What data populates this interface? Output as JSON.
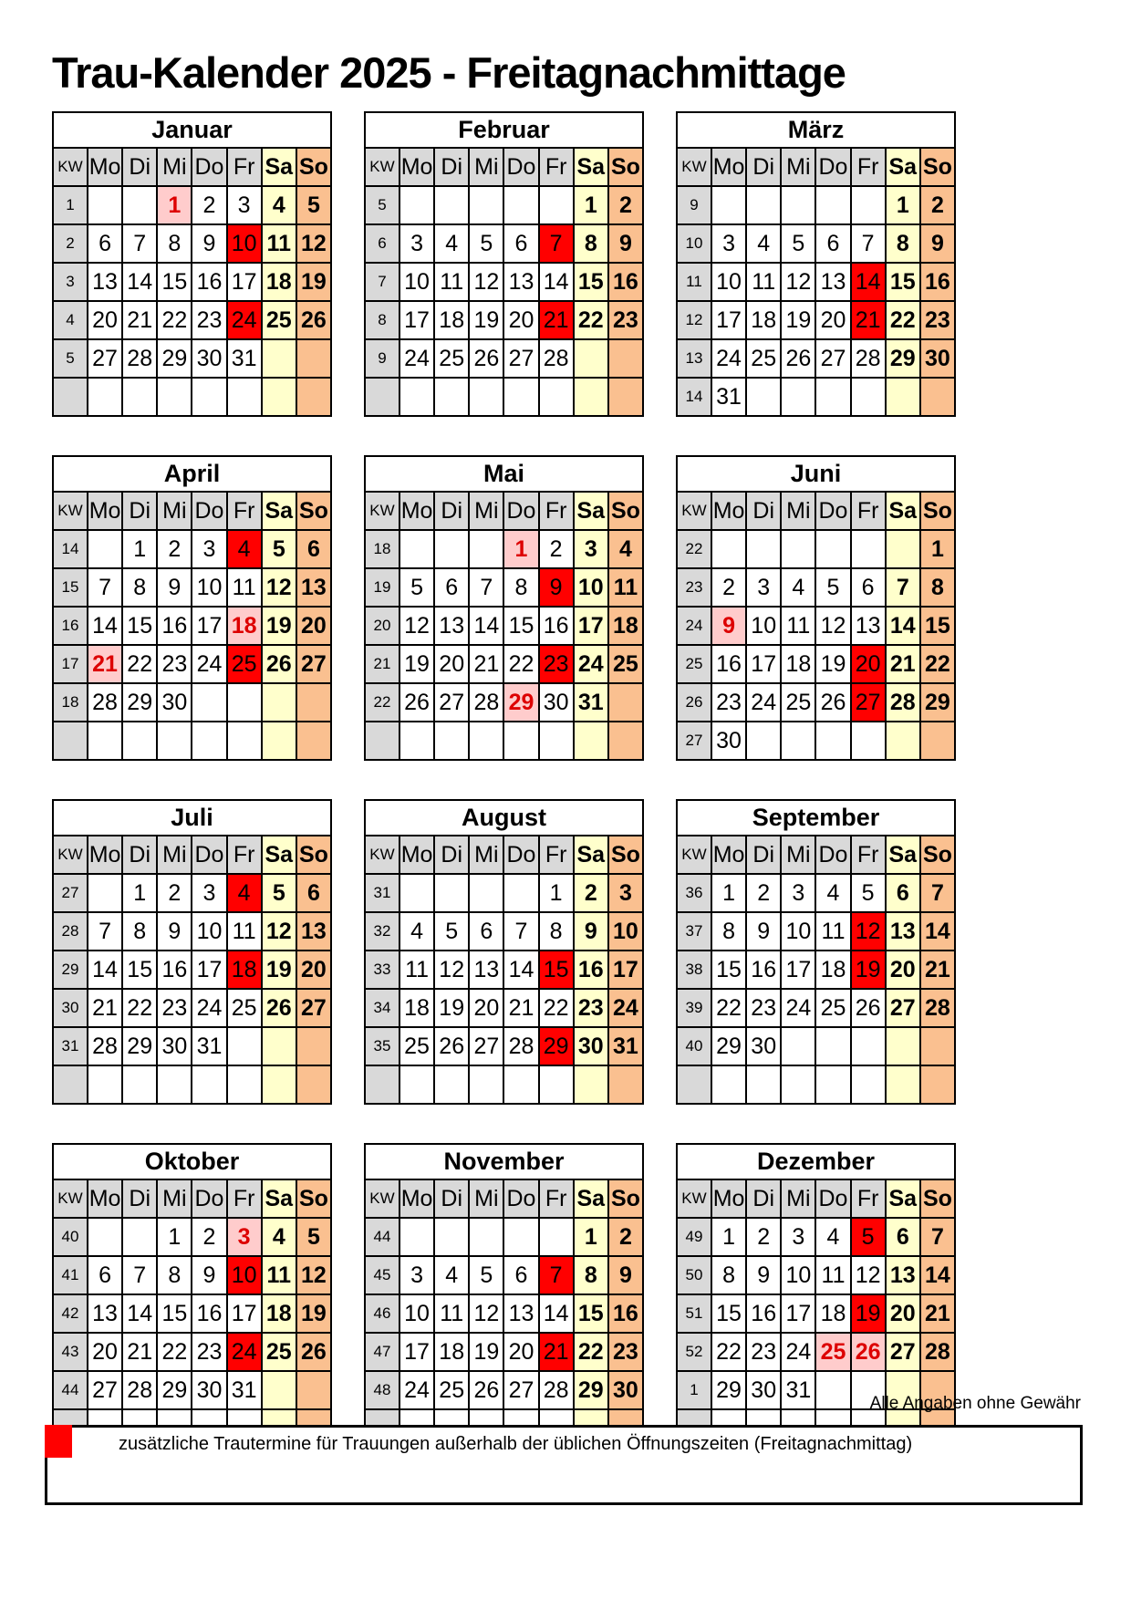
{
  "title": "Trau-Kalender 2025 - Freitagnachmittage",
  "disclaimer": "Alle Angaben ohne Gewähr",
  "legend": {
    "swatch_color": "#FF0000",
    "text": "zusätzliche Trautermine für Trauungen außerhalb der üblichen Öffnungszeiten (Freitagnachmittag)"
  },
  "colors": {
    "header_gray": "#D9D9D9",
    "saturday_yellow": "#FFFFCC",
    "sunday_orange": "#FAC090",
    "marked_friday_red": "#FF0000",
    "holiday_pink_bg": "#FFCCCC",
    "holiday_red_text": "#DD0000"
  },
  "day_headers": [
    "KW",
    "Mo",
    "Di",
    "Mi",
    "Do",
    "Fr",
    "Sa",
    "So"
  ],
  "cell_codes": {
    "R": "marked friday (red background)",
    "H": "public holiday (pink background, red bold)"
  },
  "months": [
    {
      "name": "Januar",
      "weeks": [
        {
          "kw": "1",
          "days": [
            "",
            "",
            "1H",
            "2",
            "3",
            "4",
            "5"
          ]
        },
        {
          "kw": "2",
          "days": [
            "6",
            "7",
            "8",
            "9",
            "10R",
            "11",
            "12"
          ]
        },
        {
          "kw": "3",
          "days": [
            "13",
            "14",
            "15",
            "16",
            "17",
            "18",
            "19"
          ]
        },
        {
          "kw": "4",
          "days": [
            "20",
            "21",
            "22",
            "23",
            "24R",
            "25",
            "26"
          ]
        },
        {
          "kw": "5",
          "days": [
            "27",
            "28",
            "29",
            "30",
            "31",
            "",
            ""
          ]
        },
        {
          "kw": "",
          "days": [
            "",
            "",
            "",
            "",
            "",
            "",
            ""
          ]
        }
      ]
    },
    {
      "name": "Februar",
      "weeks": [
        {
          "kw": "5",
          "days": [
            "",
            "",
            "",
            "",
            "",
            "1",
            "2"
          ]
        },
        {
          "kw": "6",
          "days": [
            "3",
            "4",
            "5",
            "6",
            "7R",
            "8",
            "9"
          ]
        },
        {
          "kw": "7",
          "days": [
            "10",
            "11",
            "12",
            "13",
            "14",
            "15",
            "16"
          ]
        },
        {
          "kw": "8",
          "days": [
            "17",
            "18",
            "19",
            "20",
            "21R",
            "22",
            "23"
          ]
        },
        {
          "kw": "9",
          "days": [
            "24",
            "25",
            "26",
            "27",
            "28",
            "",
            ""
          ]
        },
        {
          "kw": "",
          "days": [
            "",
            "",
            "",
            "",
            "",
            "",
            ""
          ]
        }
      ]
    },
    {
      "name": "März",
      "weeks": [
        {
          "kw": "9",
          "days": [
            "",
            "",
            "",
            "",
            "",
            "1",
            "2"
          ]
        },
        {
          "kw": "10",
          "days": [
            "3",
            "4",
            "5",
            "6",
            "7",
            "8",
            "9"
          ]
        },
        {
          "kw": "11",
          "days": [
            "10",
            "11",
            "12",
            "13",
            "14R",
            "15",
            "16"
          ]
        },
        {
          "kw": "12",
          "days": [
            "17",
            "18",
            "19",
            "20",
            "21R",
            "22",
            "23"
          ]
        },
        {
          "kw": "13",
          "days": [
            "24",
            "25",
            "26",
            "27",
            "28",
            "29",
            "30"
          ]
        },
        {
          "kw": "14",
          "days": [
            "31",
            "",
            "",
            "",
            "",
            "",
            ""
          ]
        }
      ]
    },
    {
      "name": "April",
      "weeks": [
        {
          "kw": "14",
          "days": [
            "",
            "1",
            "2",
            "3",
            "4R",
            "5",
            "6"
          ]
        },
        {
          "kw": "15",
          "days": [
            "7",
            "8",
            "9",
            "10",
            "11",
            "12",
            "13"
          ]
        },
        {
          "kw": "16",
          "days": [
            "14",
            "15",
            "16",
            "17",
            "18H",
            "19",
            "20"
          ]
        },
        {
          "kw": "17",
          "days": [
            "21H",
            "22",
            "23",
            "24",
            "25R",
            "26",
            "27"
          ]
        },
        {
          "kw": "18",
          "days": [
            "28",
            "29",
            "30",
            "",
            "",
            "",
            ""
          ]
        },
        {
          "kw": "",
          "days": [
            "",
            "",
            "",
            "",
            "",
            "",
            ""
          ]
        }
      ]
    },
    {
      "name": "Mai",
      "weeks": [
        {
          "kw": "18",
          "days": [
            "",
            "",
            "",
            "1H",
            "2",
            "3",
            "4"
          ]
        },
        {
          "kw": "19",
          "days": [
            "5",
            "6",
            "7",
            "8",
            "9R",
            "10",
            "11"
          ]
        },
        {
          "kw": "20",
          "days": [
            "12",
            "13",
            "14",
            "15",
            "16",
            "17",
            "18"
          ]
        },
        {
          "kw": "21",
          "days": [
            "19",
            "20",
            "21",
            "22",
            "23R",
            "24",
            "25"
          ]
        },
        {
          "kw": "22",
          "days": [
            "26",
            "27",
            "28",
            "29H",
            "30",
            "31",
            ""
          ]
        },
        {
          "kw": "",
          "days": [
            "",
            "",
            "",
            "",
            "",
            "",
            ""
          ]
        }
      ]
    },
    {
      "name": "Juni",
      "weeks": [
        {
          "kw": "22",
          "days": [
            "",
            "",
            "",
            "",
            "",
            "",
            "1"
          ]
        },
        {
          "kw": "23",
          "days": [
            "2",
            "3",
            "4",
            "5",
            "6",
            "7",
            "8"
          ]
        },
        {
          "kw": "24",
          "days": [
            "9H",
            "10",
            "11",
            "12",
            "13",
            "14",
            "15"
          ]
        },
        {
          "kw": "25",
          "days": [
            "16",
            "17",
            "18",
            "19",
            "20R",
            "21",
            "22"
          ]
        },
        {
          "kw": "26",
          "days": [
            "23",
            "24",
            "25",
            "26",
            "27R",
            "28",
            "29"
          ]
        },
        {
          "kw": "27",
          "days": [
            "30",
            "",
            "",
            "",
            "",
            "",
            ""
          ]
        }
      ]
    },
    {
      "name": "Juli",
      "weeks": [
        {
          "kw": "27",
          "days": [
            "",
            "1",
            "2",
            "3",
            "4R",
            "5",
            "6"
          ]
        },
        {
          "kw": "28",
          "days": [
            "7",
            "8",
            "9",
            "10",
            "11",
            "12",
            "13"
          ]
        },
        {
          "kw": "29",
          "days": [
            "14",
            "15",
            "16",
            "17",
            "18R",
            "19",
            "20"
          ]
        },
        {
          "kw": "30",
          "days": [
            "21",
            "22",
            "23",
            "24",
            "25",
            "26",
            "27"
          ]
        },
        {
          "kw": "31",
          "days": [
            "28",
            "29",
            "30",
            "31",
            "",
            "",
            ""
          ]
        },
        {
          "kw": "",
          "days": [
            "",
            "",
            "",
            "",
            "",
            "",
            ""
          ]
        }
      ]
    },
    {
      "name": "August",
      "weeks": [
        {
          "kw": "31",
          "days": [
            "",
            "",
            "",
            "",
            "1",
            "2",
            "3"
          ]
        },
        {
          "kw": "32",
          "days": [
            "4",
            "5",
            "6",
            "7",
            "8",
            "9",
            "10"
          ]
        },
        {
          "kw": "33",
          "days": [
            "11",
            "12",
            "13",
            "14",
            "15R",
            "16",
            "17"
          ]
        },
        {
          "kw": "34",
          "days": [
            "18",
            "19",
            "20",
            "21",
            "22",
            "23",
            "24"
          ]
        },
        {
          "kw": "35",
          "days": [
            "25",
            "26",
            "27",
            "28",
            "29R",
            "30",
            "31"
          ]
        },
        {
          "kw": "",
          "days": [
            "",
            "",
            "",
            "",
            "",
            "",
            ""
          ]
        }
      ]
    },
    {
      "name": "September",
      "weeks": [
        {
          "kw": "36",
          "days": [
            "1",
            "2",
            "3",
            "4",
            "5",
            "6",
            "7"
          ]
        },
        {
          "kw": "37",
          "days": [
            "8",
            "9",
            "10",
            "11",
            "12R",
            "13",
            "14"
          ]
        },
        {
          "kw": "38",
          "days": [
            "15",
            "16",
            "17",
            "18",
            "19R",
            "20",
            "21"
          ]
        },
        {
          "kw": "39",
          "days": [
            "22",
            "23",
            "24",
            "25",
            "26",
            "27",
            "28"
          ]
        },
        {
          "kw": "40",
          "days": [
            "29",
            "30",
            "",
            "",
            "",
            "",
            ""
          ]
        },
        {
          "kw": "",
          "days": [
            "",
            "",
            "",
            "",
            "",
            "",
            ""
          ]
        }
      ]
    },
    {
      "name": "Oktober",
      "weeks": [
        {
          "kw": "40",
          "days": [
            "",
            "",
            "1",
            "2",
            "3H",
            "4",
            "5"
          ]
        },
        {
          "kw": "41",
          "days": [
            "6",
            "7",
            "8",
            "9",
            "10R",
            "11",
            "12"
          ]
        },
        {
          "kw": "42",
          "days": [
            "13",
            "14",
            "15",
            "16",
            "17",
            "18",
            "19"
          ]
        },
        {
          "kw": "43",
          "days": [
            "20",
            "21",
            "22",
            "23",
            "24R",
            "25",
            "26"
          ]
        },
        {
          "kw": "44",
          "days": [
            "27",
            "28",
            "29",
            "30",
            "31",
            "",
            ""
          ]
        },
        {
          "kw": "",
          "days": [
            "",
            "",
            "",
            "",
            "",
            "",
            ""
          ]
        }
      ]
    },
    {
      "name": "November",
      "weeks": [
        {
          "kw": "44",
          "days": [
            "",
            "",
            "",
            "",
            "",
            "1",
            "2"
          ]
        },
        {
          "kw": "45",
          "days": [
            "3",
            "4",
            "5",
            "6",
            "7R",
            "8",
            "9"
          ]
        },
        {
          "kw": "46",
          "days": [
            "10",
            "11",
            "12",
            "13",
            "14",
            "15",
            "16"
          ]
        },
        {
          "kw": "47",
          "days": [
            "17",
            "18",
            "19",
            "20",
            "21R",
            "22",
            "23"
          ]
        },
        {
          "kw": "48",
          "days": [
            "24",
            "25",
            "26",
            "27",
            "28",
            "29",
            "30"
          ]
        },
        {
          "kw": "",
          "days": [
            "",
            "",
            "",
            "",
            "",
            "",
            ""
          ]
        }
      ]
    },
    {
      "name": "Dezember",
      "weeks": [
        {
          "kw": "49",
          "days": [
            "1",
            "2",
            "3",
            "4",
            "5R",
            "6",
            "7"
          ]
        },
        {
          "kw": "50",
          "days": [
            "8",
            "9",
            "10",
            "11",
            "12",
            "13",
            "14"
          ]
        },
        {
          "kw": "51",
          "days": [
            "15",
            "16",
            "17",
            "18",
            "19R",
            "20",
            "21"
          ]
        },
        {
          "kw": "52",
          "days": [
            "22",
            "23",
            "24",
            "25H",
            "26H",
            "27",
            "28"
          ]
        },
        {
          "kw": "1",
          "days": [
            "29",
            "30",
            "31",
            "",
            "",
            "",
            ""
          ]
        },
        {
          "kw": "",
          "days": [
            "",
            "",
            "",
            "",
            "",
            "",
            ""
          ]
        }
      ]
    }
  ]
}
